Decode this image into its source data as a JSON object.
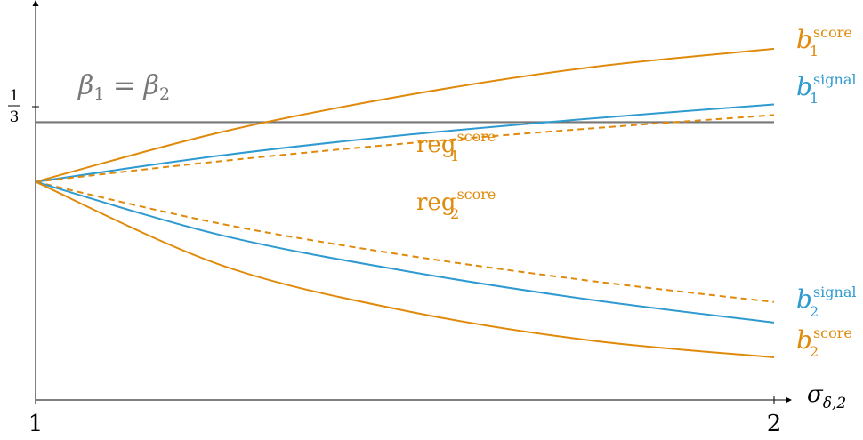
{
  "chart_data": {
    "type": "line",
    "title": "",
    "xlabel": "σ",
    "xlabel_subscript": "δ,2",
    "ylabel": "",
    "x_ticks": [
      "1",
      "2"
    ],
    "y_ticks": [
      "1",
      "3"
    ],
    "xlim": [
      1,
      2
    ],
    "ylim": [
      0,
      0.4756
    ],
    "grid": false,
    "legend": "none",
    "reference_line": {
      "label": "β",
      "label_rhs": "β",
      "label_sub_left": "1",
      "label_sub_right": "2",
      "label_eq": " = ",
      "y": 0.3333,
      "color": "#777777"
    },
    "series": [
      {
        "key": "b1_score",
        "name": "b",
        "sub": "1",
        "sup": "score",
        "color": "#E08A0B",
        "style": "solid",
        "x": [
          1,
          1.25,
          1.5,
          1.75,
          2
        ],
        "y": [
          0.2617,
          0.3211,
          0.3652,
          0.399,
          0.4213
        ]
      },
      {
        "key": "b1_signal",
        "name": "b",
        "sub": "1",
        "sup": "signal",
        "color": "#2E9AD0",
        "style": "solid",
        "x": [
          1,
          1.25,
          1.5,
          1.75,
          2
        ],
        "y": [
          0.2617,
          0.2932,
          0.3179,
          0.3375,
          0.3546
        ]
      },
      {
        "key": "reg1_score",
        "name": "reg",
        "sub": "1",
        "sup": "score",
        "color": "#E08A0B",
        "style": "dashed",
        "x": [
          1,
          1.25,
          1.5,
          1.75,
          2
        ],
        "y": [
          0.2617,
          0.2865,
          0.3077,
          0.3257,
          0.3419
        ]
      },
      {
        "key": "reg2_score",
        "name": "reg",
        "sub": "2",
        "sup": "score",
        "color": "#E08A0B",
        "style": "dashed",
        "x": [
          1,
          1.25,
          1.5,
          1.75,
          2
        ],
        "y": [
          0.2617,
          0.2116,
          0.1738,
          0.1431,
          0.1175
        ]
      },
      {
        "key": "b2_signal",
        "name": "b",
        "sub": "2",
        "sup": "signal",
        "color": "#2E9AD0",
        "style": "solid",
        "x": [
          1,
          1.25,
          1.5,
          1.75,
          2
        ],
        "y": [
          0.2617,
          0.198,
          0.1549,
          0.1205,
          0.0929
        ]
      },
      {
        "key": "b2_score",
        "name": "b",
        "sub": "2",
        "sup": "score",
        "color": "#E08A0B",
        "style": "solid",
        "x": [
          1,
          1.25,
          1.5,
          1.75,
          2
        ],
        "y": [
          0.2617,
          0.1622,
          0.1072,
          0.0716,
          0.0512
        ]
      }
    ]
  }
}
